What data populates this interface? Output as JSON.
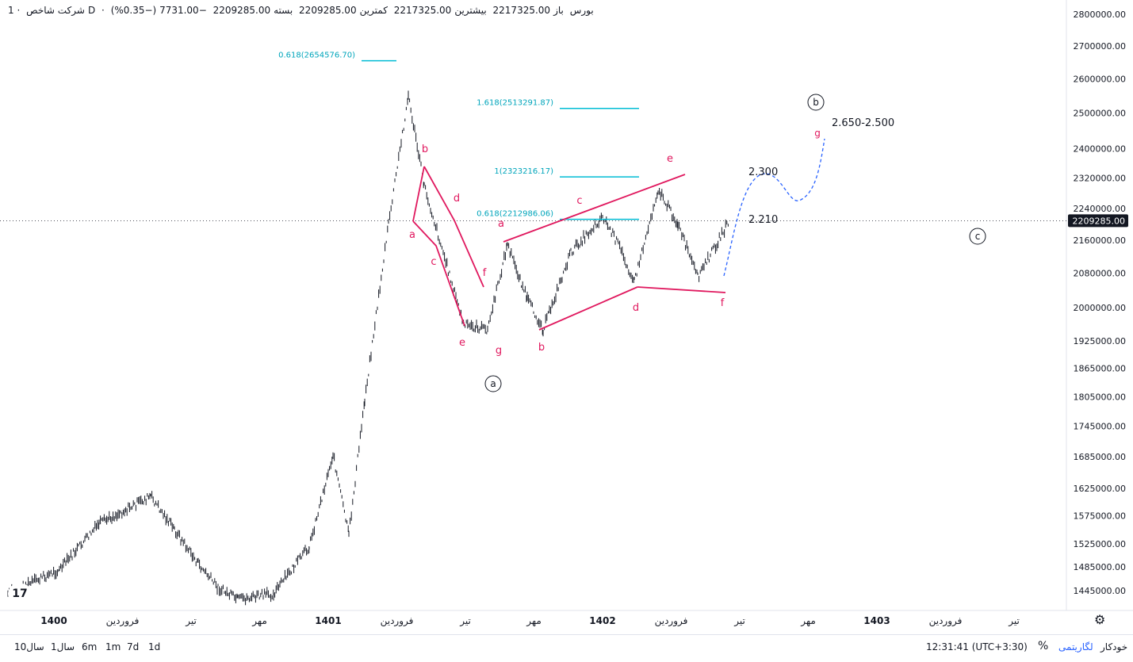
{
  "header": {
    "title": "شرکت شاخص",
    "interval": "1D",
    "exchange": "بورس",
    "open_label": "باز",
    "open": "2217325.00",
    "high_label": "بیشترین",
    "high": "2217325.00",
    "low_label": "کمترین",
    "low": "2209285.00",
    "close_label": "بسته",
    "close": "2209285.00",
    "change": "−7731.00 (−0.35%)"
  },
  "colors": {
    "wave_lines": "#e0185e",
    "fib_lines": "#00bcd4",
    "projection": "#2962ff",
    "candles": "#131722",
    "price_tag_bg": "#131722"
  },
  "chart_data": {
    "type": "line",
    "title": "",
    "ylabel": "",
    "log_scale": true,
    "current_price": "2209285.00",
    "y_ticks": [
      "2800000.00",
      "2700000.00",
      "2600000.00",
      "2500000.00",
      "2400000.00",
      "2320000.00",
      "2240000.00",
      "2160000.00",
      "2080000.00",
      "2000000.00",
      "1925000.00",
      "1865000.00",
      "1805000.00",
      "1745000.00",
      "1685000.00",
      "1625000.00",
      "1575000.00",
      "1525000.00",
      "1485000.00",
      "1445000.00"
    ],
    "x_ticks": [
      "1400",
      "فروردین",
      "تیر",
      "مهر",
      "1401",
      "فروردین",
      "تیر",
      "مهر",
      "1402",
      "فروردین",
      "تیر",
      "مهر",
      "1403",
      "فروردین",
      "تیر"
    ],
    "price_path": [
      [
        "1400",
        1440000
      ],
      [
        "فروردین 1400",
        1480000
      ],
      [
        "اردیبهشت 1400",
        1560000
      ],
      [
        "خرداد 1400",
        1610000
      ],
      [
        "تیر 1400",
        1550000
      ],
      [
        "مرداد 1400",
        1490000
      ],
      [
        "شهریور 1400",
        1450000
      ],
      [
        "مهر 1400",
        1430000
      ],
      [
        "آذر 1400",
        1440000
      ],
      [
        "دی 1400",
        1520000
      ],
      [
        "بهمن 1400",
        1690000
      ],
      [
        "اسفند 1400",
        1540000
      ],
      [
        "اواخر اسفند 1400",
        1800000
      ],
      [
        "فروردین 1401",
        2200000
      ],
      [
        "اردیبهشت 1401",
        2550000
      ],
      [
        "خرداد 1401",
        2300000
      ],
      [
        "تیر 1401",
        1960000
      ],
      [
        "مرداد 1401",
        1950000
      ],
      [
        "شهریور 1401",
        2150000
      ],
      [
        "مهر 1401",
        2020000
      ],
      [
        "آبان 1401",
        1950000
      ],
      [
        "آذر 1401",
        2130000
      ],
      [
        "دی 1401",
        2220000
      ],
      [
        "بهمن 1401",
        2150000
      ],
      [
        "اسفند 1401",
        2060000
      ],
      [
        "فروردین 1402",
        2290000
      ],
      [
        "اردیبهشت 1402",
        2200000
      ],
      [
        "خرداد 1402",
        2070000
      ],
      [
        "تیر 1402",
        2209285
      ]
    ],
    "fib_levels": [
      {
        "label": "0.618(2654576.70)",
        "value": 2654576.7
      },
      {
        "label": "1.618(2513291.87)",
        "value": 2513291.87
      },
      {
        "label": "1(2323216.17)",
        "value": 2323216.17
      },
      {
        "label": "0.618(2212986.06)",
        "value": 2212986.06
      }
    ],
    "wave_labels_first": [
      "a",
      "b",
      "c",
      "d",
      "e",
      "f",
      "g"
    ],
    "wave_labels_second": [
      "a",
      "b",
      "c",
      "d",
      "e",
      "f",
      "g"
    ],
    "circled_labels": [
      "a",
      "b",
      "c"
    ],
    "annotations": [
      "2.650-2.500",
      "2.300",
      "2.210"
    ]
  },
  "bottom": {
    "ranges": [
      "1d",
      "7d",
      "1m",
      "6m",
      "1سال",
      "10سال"
    ],
    "time": "12:31:41 (UTC+3:30)",
    "percent": "%",
    "log": "لگاریتمی",
    "auto": "خودکار"
  }
}
